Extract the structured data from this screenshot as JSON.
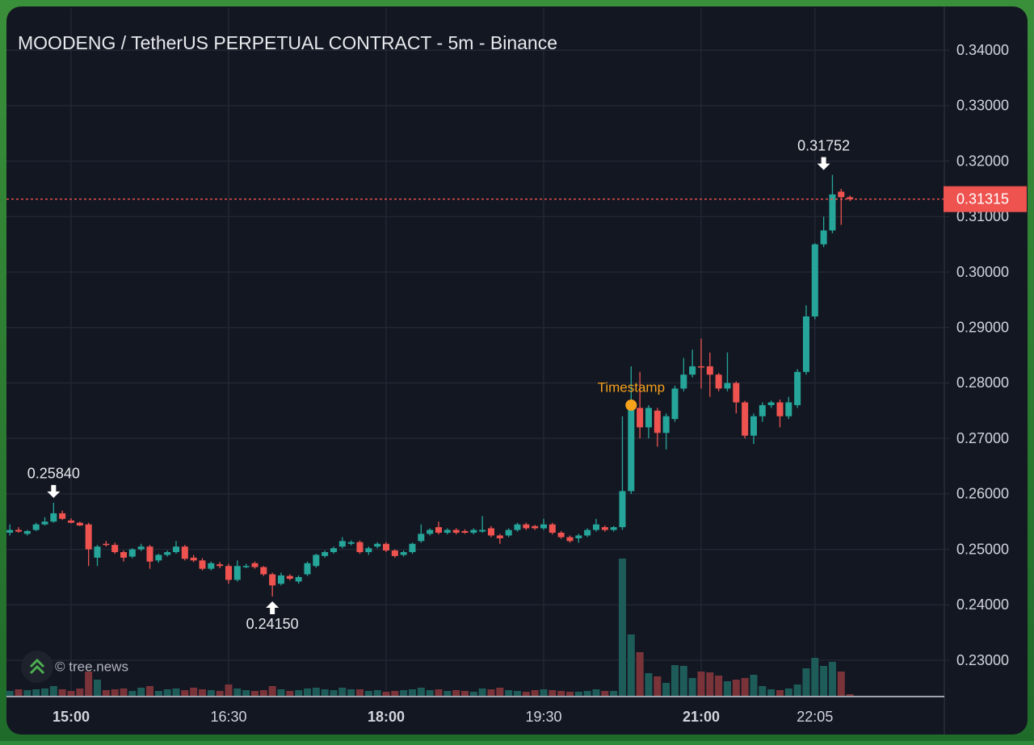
{
  "chart_data": {
    "type": "candlestick",
    "title": "MOODENG / TetherUS PERPETUAL CONTRACT - 5m - Binance",
    "watermark": "© tree.news",
    "up_color": "#26a69a",
    "down_color": "#ef5350",
    "volume_up_color": "#1e5c5a",
    "volume_down_color": "#7a3439",
    "grid": true,
    "x": [
      "14:25",
      "14:30",
      "14:35",
      "14:40",
      "14:45",
      "14:50",
      "14:55",
      "15:00",
      "15:05",
      "15:10",
      "15:15",
      "15:20",
      "15:25",
      "15:30",
      "15:35",
      "15:40",
      "15:45",
      "15:50",
      "15:55",
      "16:00",
      "16:05",
      "16:10",
      "16:15",
      "16:20",
      "16:25",
      "16:30",
      "16:35",
      "16:40",
      "16:45",
      "16:50",
      "16:55",
      "17:00",
      "17:05",
      "17:10",
      "17:15",
      "17:20",
      "17:25",
      "17:30",
      "17:35",
      "17:40",
      "17:45",
      "17:50",
      "17:55",
      "18:00",
      "18:05",
      "18:10",
      "18:15",
      "18:20",
      "18:25",
      "18:30",
      "18:35",
      "18:40",
      "18:45",
      "18:50",
      "18:55",
      "19:00",
      "19:05",
      "19:10",
      "19:15",
      "19:20",
      "19:25",
      "19:30",
      "19:35",
      "19:40",
      "19:45",
      "19:50",
      "19:55",
      "20:00",
      "20:05",
      "20:10",
      "20:15",
      "20:20",
      "20:25",
      "20:30",
      "20:35",
      "20:40",
      "20:45",
      "20:50",
      "20:55",
      "21:00",
      "21:05",
      "21:10",
      "21:15",
      "21:20",
      "21:25",
      "21:30",
      "21:35",
      "21:40",
      "21:45",
      "21:50",
      "21:55",
      "22:00",
      "22:05",
      "22:10",
      "22:15",
      "22:20",
      "22:25"
    ],
    "open": [
      0.253,
      0.2535,
      0.2528,
      0.2535,
      0.2545,
      0.255,
      0.2565,
      0.2552,
      0.2548,
      0.2545,
      0.2485,
      0.251,
      0.2508,
      0.2495,
      0.2487,
      0.25,
      0.2505,
      0.248,
      0.249,
      0.2495,
      0.2505,
      0.2485,
      0.248,
      0.2465,
      0.2473,
      0.247,
      0.2445,
      0.247,
      0.2475,
      0.2468,
      0.2455,
      0.2438,
      0.2452,
      0.2442,
      0.2455,
      0.247,
      0.2488,
      0.2495,
      0.2505,
      0.251,
      0.2513,
      0.2495,
      0.2505,
      0.251,
      0.2498,
      0.249,
      0.2495,
      0.2515,
      0.2528,
      0.254,
      0.253,
      0.2535,
      0.2533,
      0.253,
      0.2532,
      0.2538,
      0.2525,
      0.2525,
      0.2535,
      0.2545,
      0.2542,
      0.2538,
      0.2545,
      0.253,
      0.2522,
      0.252,
      0.2525,
      0.2535,
      0.254,
      0.2535,
      0.254,
      0.2605,
      0.2755,
      0.272,
      0.275,
      0.271,
      0.2735,
      0.279,
      0.2815,
      0.283,
      0.283,
      0.2815,
      0.279,
      0.28,
      0.2765,
      0.2705,
      0.274,
      0.276,
      0.2765,
      0.274,
      0.276,
      0.282,
      0.292,
      0.305,
      0.3075,
      0.3145,
      0.3135
    ],
    "high": [
      0.2545,
      0.254,
      0.2535,
      0.2548,
      0.2558,
      0.2584,
      0.257,
      0.2556,
      0.255,
      0.2548,
      0.2508,
      0.2515,
      0.2512,
      0.2498,
      0.2502,
      0.251,
      0.2508,
      0.2492,
      0.2498,
      0.2515,
      0.2508,
      0.249,
      0.2484,
      0.2478,
      0.2477,
      0.2474,
      0.248,
      0.2474,
      0.2478,
      0.247,
      0.2458,
      0.2458,
      0.2455,
      0.2453,
      0.2478,
      0.2492,
      0.2498,
      0.2505,
      0.2522,
      0.2516,
      0.2516,
      0.2505,
      0.2513,
      0.2513,
      0.25,
      0.2498,
      0.2512,
      0.2545,
      0.2538,
      0.255,
      0.2538,
      0.2538,
      0.2536,
      0.2538,
      0.256,
      0.2542,
      0.2528,
      0.2538,
      0.2548,
      0.2548,
      0.2544,
      0.2555,
      0.2548,
      0.2533,
      0.2525,
      0.2528,
      0.2538,
      0.2555,
      0.2543,
      0.2542,
      0.274,
      0.283,
      0.282,
      0.276,
      0.2755,
      0.2745,
      0.2795,
      0.2845,
      0.286,
      0.288,
      0.2855,
      0.2818,
      0.2855,
      0.2803,
      0.2768,
      0.2745,
      0.2765,
      0.2768,
      0.277,
      0.2775,
      0.2825,
      0.294,
      0.3052,
      0.31,
      0.31752,
      0.315,
      0.3138
    ],
    "low": [
      0.2525,
      0.253,
      0.2525,
      0.2533,
      0.2543,
      0.2548,
      0.2553,
      0.2547,
      0.2542,
      0.247,
      0.247,
      0.2505,
      0.2492,
      0.2478,
      0.2484,
      0.2497,
      0.2465,
      0.2476,
      0.2487,
      0.2492,
      0.248,
      0.2477,
      0.2462,
      0.2462,
      0.2466,
      0.2438,
      0.2442,
      0.2466,
      0.2465,
      0.2452,
      0.2415,
      0.2435,
      0.2444,
      0.2438,
      0.2452,
      0.2467,
      0.2485,
      0.2492,
      0.2502,
      0.2507,
      0.2492,
      0.249,
      0.2502,
      0.2495,
      0.2485,
      0.2487,
      0.2492,
      0.2512,
      0.2525,
      0.2527,
      0.2527,
      0.2527,
      0.2528,
      0.2527,
      0.253,
      0.2522,
      0.251,
      0.2522,
      0.2532,
      0.2535,
      0.2535,
      0.2535,
      0.2527,
      0.2519,
      0.2512,
      0.2512,
      0.2522,
      0.2532,
      0.2532,
      0.2532,
      0.2535,
      0.26,
      0.27,
      0.27,
      0.2685,
      0.268,
      0.273,
      0.2785,
      0.281,
      0.279,
      0.2775,
      0.2785,
      0.2785,
      0.2745,
      0.27,
      0.269,
      0.273,
      0.2755,
      0.272,
      0.2735,
      0.2755,
      0.2815,
      0.2915,
      0.3045,
      0.307,
      0.3085,
      0.3128
    ],
    "close": [
      0.2535,
      0.2532,
      0.2533,
      0.2545,
      0.255,
      0.2565,
      0.2555,
      0.2548,
      0.2543,
      0.25,
      0.2505,
      0.2508,
      0.2495,
      0.2485,
      0.25,
      0.2505,
      0.2478,
      0.249,
      0.2495,
      0.2505,
      0.2483,
      0.248,
      0.2465,
      0.2475,
      0.247,
      0.2445,
      0.247,
      0.247,
      0.2468,
      0.2455,
      0.2435,
      0.2453,
      0.2447,
      0.245,
      0.2475,
      0.249,
      0.2495,
      0.2502,
      0.2515,
      0.2513,
      0.2495,
      0.2502,
      0.251,
      0.2498,
      0.2488,
      0.2495,
      0.251,
      0.2528,
      0.2535,
      0.253,
      0.2535,
      0.253,
      0.253,
      0.2535,
      0.2535,
      0.2525,
      0.252,
      0.2535,
      0.2545,
      0.2538,
      0.2538,
      0.2545,
      0.253,
      0.2522,
      0.2515,
      0.2525,
      0.2535,
      0.2545,
      0.2535,
      0.254,
      0.2605,
      0.2755,
      0.272,
      0.2755,
      0.271,
      0.274,
      0.279,
      0.2815,
      0.283,
      0.2828,
      0.2815,
      0.279,
      0.28,
      0.2765,
      0.2705,
      0.274,
      0.276,
      0.2765,
      0.274,
      0.2765,
      0.282,
      0.292,
      0.305,
      0.3075,
      0.314,
      0.3135,
      0.31315
    ],
    "volume": [
      6,
      8,
      7,
      8,
      9,
      12,
      8,
      6,
      9,
      30,
      20,
      7,
      8,
      9,
      6,
      10,
      12,
      6,
      8,
      9,
      7,
      10,
      8,
      7,
      6,
      14,
      9,
      7,
      6,
      7,
      12,
      8,
      6,
      7,
      9,
      10,
      8,
      7,
      10,
      8,
      8,
      6,
      7,
      5,
      6,
      7,
      8,
      10,
      7,
      8,
      6,
      7,
      6,
      5,
      9,
      8,
      10,
      7,
      6,
      5,
      7,
      8,
      7,
      6,
      5,
      5,
      6,
      8,
      6,
      6,
      170,
      76,
      54,
      28,
      24,
      16,
      38,
      37,
      22,
      30,
      29,
      25,
      18,
      20,
      22,
      26,
      12,
      8,
      7,
      9,
      14,
      34,
      47,
      37,
      42,
      30,
      2
    ],
    "ylim": [
      0.2236,
      0.3476
    ],
    "yticks": [
      {
        "value": 0.23,
        "label": "0.23000"
      },
      {
        "value": 0.24,
        "label": "0.24000"
      },
      {
        "value": 0.25,
        "label": "0.25000"
      },
      {
        "value": 0.26,
        "label": "0.26000"
      },
      {
        "value": 0.27,
        "label": "0.27000"
      },
      {
        "value": 0.28,
        "label": "0.28000"
      },
      {
        "value": 0.29,
        "label": "0.29000"
      },
      {
        "value": 0.3,
        "label": "0.30000"
      },
      {
        "value": 0.31,
        "label": "0.31000"
      },
      {
        "value": 0.32,
        "label": "0.32000"
      },
      {
        "value": 0.33,
        "label": "0.33000"
      },
      {
        "value": 0.34,
        "label": "0.34000"
      }
    ],
    "xticks": [
      "15:00",
      "16:30",
      "18:00",
      "19:30",
      "21:00",
      "22:05"
    ],
    "last_price": {
      "value": 0.31315,
      "label": "0.31315"
    },
    "annotations": [
      {
        "x": "14:50",
        "value": 0.2584,
        "label": "0.25840",
        "direction": "down"
      },
      {
        "x": "16:55",
        "value": 0.2415,
        "label": "0.24150",
        "direction": "up"
      },
      {
        "x": "22:10",
        "value": 0.31752,
        "label": "0.31752",
        "direction": "down"
      }
    ],
    "marker": {
      "x": "20:20",
      "value": 0.276,
      "label": "Timestamp",
      "color": "#f7a21b"
    }
  }
}
